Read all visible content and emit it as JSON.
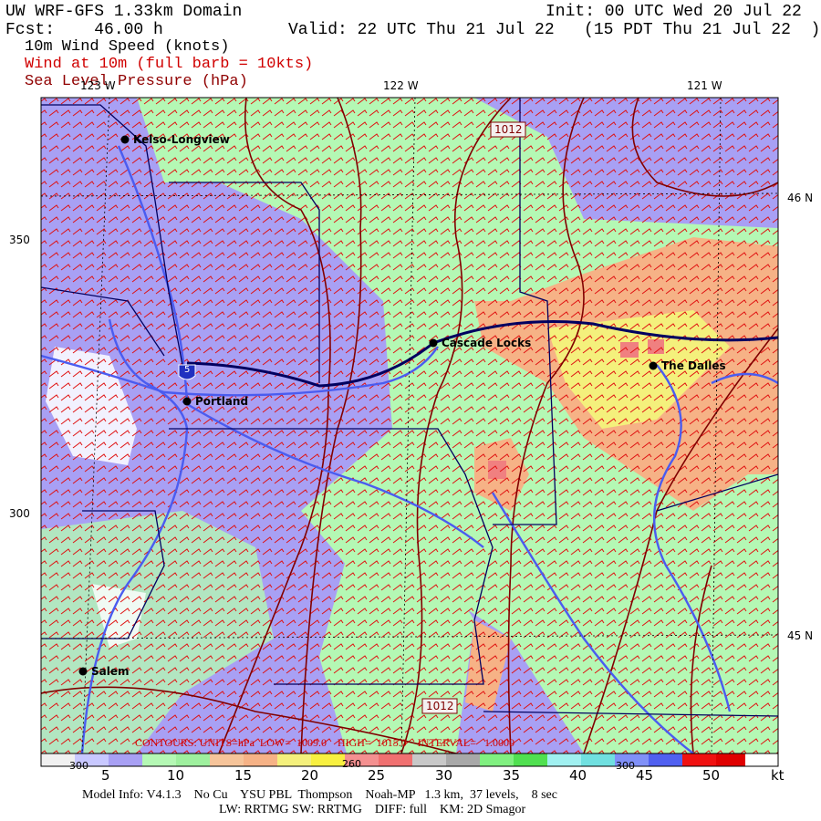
{
  "header": {
    "title": "UW WRF-GFS 1.33km Domain",
    "init": "Init: 00 UTC Wed 20 Jul 22",
    "forecast": "Fcst:    46.00 h",
    "valid": "Valid: 22 UTC Thu 21 Jul 22   (15 PDT Thu 21 Jul 22  )",
    "fields": [
      "10m Wind Speed (knots)",
      "Wind at 10m (full barb = 10kts)",
      "Sea Level Pressure (hPa)"
    ]
  },
  "map": {
    "longitude_labels": [
      "123 W",
      "122 W",
      "121 W"
    ],
    "latitude_labels": [
      "46 N",
      "45 N"
    ],
    "grid_labels": [
      "350",
      "300"
    ],
    "cities": [
      "Kelso-Longview",
      "Cascade Locks",
      "The Dalles",
      "Portland",
      "Salem"
    ],
    "highway": "5",
    "contour_labels": [
      "1012",
      "1012"
    ],
    "contour_info": "CONTOURS: UNITS=hPa  LOW=  1009.0    HIGH=  1015.0    INTERVAL=   1.0000"
  },
  "colorbar": {
    "labels": [
      "5",
      "10",
      "15",
      "20",
      "25",
      "30",
      "35",
      "40",
      "45",
      "50"
    ],
    "unit": "kt",
    "overlay_labels": [
      "300",
      "260",
      "300"
    ]
  },
  "footer": {
    "line1": "Model Info: V4.1.3    No Cu    YSU PBL  Thompson    Noah-MP   1.3 km,  37 levels,    8 sec",
    "line2": "LW: RRTMG SW: RRTMG    DIFF: full    KM: 2D Smagor"
  }
}
